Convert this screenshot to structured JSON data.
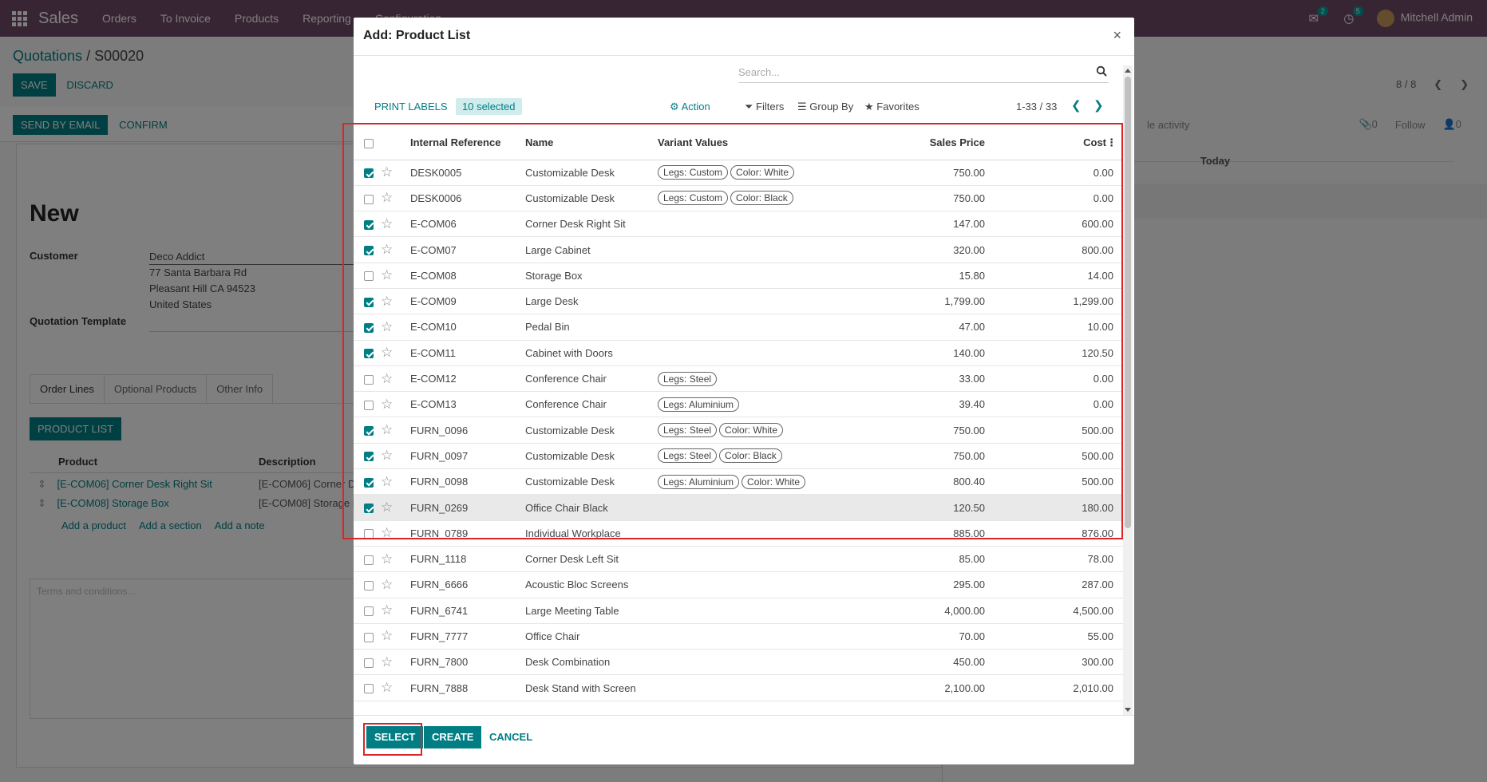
{
  "navbar": {
    "brand": "Sales",
    "menu": [
      "Orders",
      "To Invoice",
      "Products",
      "Reporting",
      "Configuration"
    ],
    "chat_count": "2",
    "activity_count": "5",
    "user": "Mitchell Admin"
  },
  "background": {
    "breadcrumb_parent": "Quotations",
    "breadcrumb_current": "S00020",
    "save_label": "SAVE",
    "discard_label": "DISCARD",
    "send_email_label": "SEND BY EMAIL",
    "confirm_label": "CONFIRM",
    "pager": "8 / 8",
    "record_title": "New",
    "customer_label": "Customer",
    "customer_name": "Deco Addict",
    "address_line1": "77 Santa Barbara Rd",
    "address_line2": "Pleasant Hill CA 94523",
    "address_line3": "United States",
    "template_label": "Quotation Template",
    "tabs": [
      "Order Lines",
      "Optional Products",
      "Other Info"
    ],
    "product_list_button": "PRODUCT LIST",
    "col_product": "Product",
    "col_description": "Description",
    "lines": [
      {
        "product": "[E-COM06] Corner Desk Right Sit",
        "description": "[E-COM06] Corner De"
      },
      {
        "product": "[E-COM08] Storage Box",
        "description": "[E-COM08] Storage B"
      }
    ],
    "add_product": "Add a product",
    "add_section": "Add a section",
    "add_note": "Add a note",
    "terms_placeholder": "Terms and conditions...",
    "chatter_schedule": "le activity",
    "chatter_attach": "0",
    "chatter_follow": "Follow",
    "chatter_followers": "0",
    "chatter_today": "Today"
  },
  "modal": {
    "title": "Add: Product List",
    "close": "×",
    "search_placeholder": "Search...",
    "print_labels": "PRINT LABELS",
    "selected_badge": "10 selected",
    "action": "Action",
    "filters": "Filters",
    "group_by": "Group By",
    "favorites": "Favorites",
    "pager": "1-33 / 33",
    "columns": {
      "ref": "Internal Reference",
      "name": "Name",
      "variant": "Variant Values",
      "price": "Sales Price",
      "cost": "Cost"
    },
    "rows": [
      {
        "checked": true,
        "ref": "DESK0005",
        "name": "Customizable Desk",
        "tags": [
          "Legs: Custom",
          "Color: White"
        ],
        "price": "750.00",
        "cost": "0.00"
      },
      {
        "checked": false,
        "ref": "DESK0006",
        "name": "Customizable Desk",
        "tags": [
          "Legs: Custom",
          "Color: Black"
        ],
        "price": "750.00",
        "cost": "0.00"
      },
      {
        "checked": true,
        "ref": "E-COM06",
        "name": "Corner Desk Right Sit",
        "tags": [],
        "price": "147.00",
        "cost": "600.00"
      },
      {
        "checked": true,
        "ref": "E-COM07",
        "name": "Large Cabinet",
        "tags": [],
        "price": "320.00",
        "cost": "800.00"
      },
      {
        "checked": false,
        "ref": "E-COM08",
        "name": "Storage Box",
        "tags": [],
        "price": "15.80",
        "cost": "14.00"
      },
      {
        "checked": true,
        "ref": "E-COM09",
        "name": "Large Desk",
        "tags": [],
        "price": "1,799.00",
        "cost": "1,299.00"
      },
      {
        "checked": true,
        "ref": "E-COM10",
        "name": "Pedal Bin",
        "tags": [],
        "price": "47.00",
        "cost": "10.00"
      },
      {
        "checked": true,
        "ref": "E-COM11",
        "name": "Cabinet with Doors",
        "tags": [],
        "price": "140.00",
        "cost": "120.50"
      },
      {
        "checked": false,
        "ref": "E-COM12",
        "name": "Conference Chair",
        "tags": [
          "Legs: Steel"
        ],
        "price": "33.00",
        "cost": "0.00"
      },
      {
        "checked": false,
        "ref": "E-COM13",
        "name": "Conference Chair",
        "tags": [
          "Legs: Aluminium"
        ],
        "price": "39.40",
        "cost": "0.00"
      },
      {
        "checked": true,
        "ref": "FURN_0096",
        "name": "Customizable Desk",
        "tags": [
          "Legs: Steel",
          "Color: White"
        ],
        "price": "750.00",
        "cost": "500.00"
      },
      {
        "checked": true,
        "ref": "FURN_0097",
        "name": "Customizable Desk",
        "tags": [
          "Legs: Steel",
          "Color: Black"
        ],
        "price": "750.00",
        "cost": "500.00"
      },
      {
        "checked": true,
        "ref": "FURN_0098",
        "name": "Customizable Desk",
        "tags": [
          "Legs: Aluminium",
          "Color: White"
        ],
        "price": "800.40",
        "cost": "500.00"
      },
      {
        "checked": true,
        "ref": "FURN_0269",
        "name": "Office Chair Black",
        "tags": [],
        "price": "120.50",
        "cost": "180.00",
        "highlight": true
      },
      {
        "checked": false,
        "ref": "FURN_0789",
        "name": "Individual Workplace",
        "tags": [],
        "price": "885.00",
        "cost": "876.00"
      },
      {
        "checked": false,
        "ref": "FURN_1118",
        "name": "Corner Desk Left Sit",
        "tags": [],
        "price": "85.00",
        "cost": "78.00"
      },
      {
        "checked": false,
        "ref": "FURN_6666",
        "name": "Acoustic Bloc Screens",
        "tags": [],
        "price": "295.00",
        "cost": "287.00"
      },
      {
        "checked": false,
        "ref": "FURN_6741",
        "name": "Large Meeting Table",
        "tags": [],
        "price": "4,000.00",
        "cost": "4,500.00"
      },
      {
        "checked": false,
        "ref": "FURN_7777",
        "name": "Office Chair",
        "tags": [],
        "price": "70.00",
        "cost": "55.00"
      },
      {
        "checked": false,
        "ref": "FURN_7800",
        "name": "Desk Combination",
        "tags": [],
        "price": "450.00",
        "cost": "300.00"
      },
      {
        "checked": false,
        "ref": "FURN_7888",
        "name": "Desk Stand with Screen",
        "tags": [],
        "price": "2,100.00",
        "cost": "2,010.00"
      }
    ],
    "select_label": "SELECT",
    "create_label": "CREATE",
    "cancel_label": "CANCEL"
  },
  "colors": {
    "navbar": "#714b67",
    "primary": "#017e84",
    "annotation": "#d9262b"
  }
}
